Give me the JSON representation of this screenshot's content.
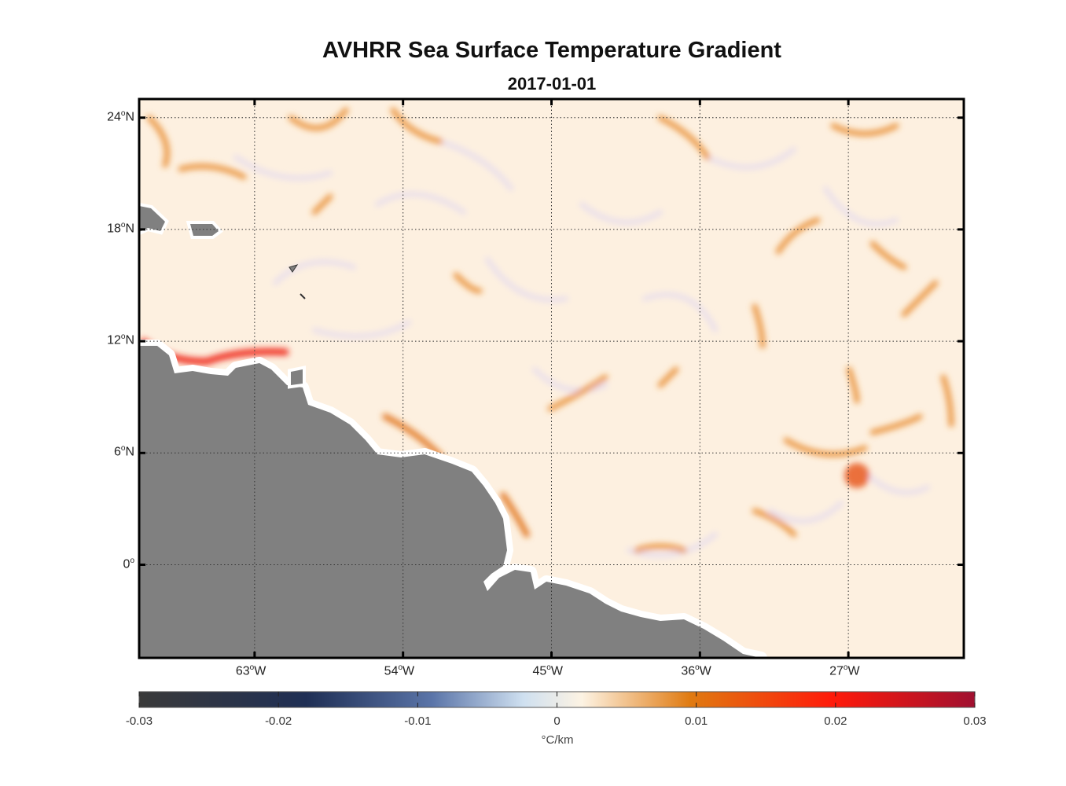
{
  "title": "AVHRR Sea Surface Temperature Gradient",
  "subtitle": "2017-01-01",
  "map": {
    "lon_range": [
      -70,
      -20
    ],
    "lat_range": [
      -5,
      25
    ],
    "lon_ticks": [
      {
        "value": -63,
        "label": "63",
        "hemi": "W"
      },
      {
        "value": -54,
        "label": "54",
        "hemi": "W"
      },
      {
        "value": -45,
        "label": "45",
        "hemi": "W"
      },
      {
        "value": -36,
        "label": "36",
        "hemi": "W"
      },
      {
        "value": -27,
        "label": "27",
        "hemi": "W"
      }
    ],
    "lat_ticks": [
      {
        "value": 24,
        "label": "24",
        "hemi": "N"
      },
      {
        "value": 18,
        "label": "18",
        "hemi": "N"
      },
      {
        "value": 12,
        "label": "12",
        "hemi": "N"
      },
      {
        "value": 6,
        "label": "6",
        "hemi": "N"
      },
      {
        "value": 0,
        "label": "0",
        "hemi": ""
      }
    ],
    "land_color": "#808080",
    "ocean_base_color": "#fdf0e0"
  },
  "colorbar": {
    "min": -0.03,
    "max": 0.03,
    "tick_labels": [
      "-0.03",
      "-0.02",
      "-0.01",
      "0",
      "0.01",
      "0.02",
      "0.03"
    ],
    "units": "°C/km",
    "stops": [
      "#3a3a3a",
      "#1f2f55",
      "#5a74a8",
      "#cfe0f0",
      "#fdf3e3",
      "#e07a10",
      "#ff1a0a",
      "#a01030"
    ]
  }
}
